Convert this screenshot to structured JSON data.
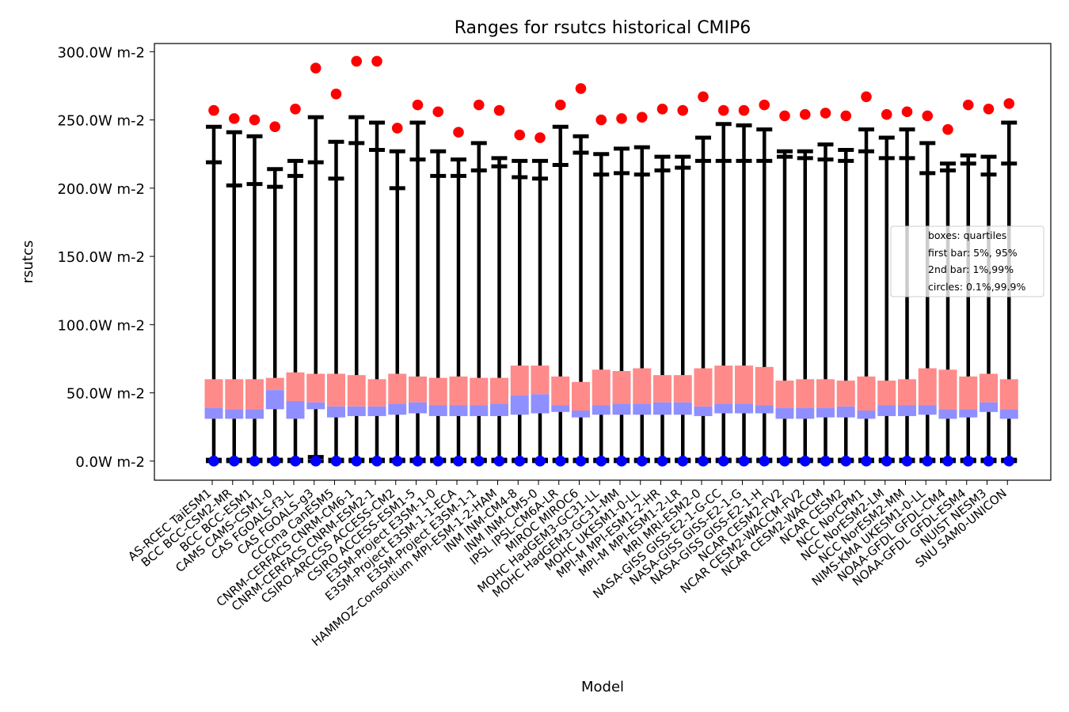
{
  "chart_data": {
    "type": "box",
    "title": "Ranges for rsutcs historical CMIP6",
    "xlabel": "Model",
    "ylabel": "rsutcs",
    "ylim": [
      -14,
      306
    ],
    "y_ticks": [
      0,
      50,
      100,
      150,
      200,
      250,
      300
    ],
    "y_tick_labels": [
      "0.0W m-2",
      "50.0W m-2",
      "100.0W m-2",
      "150.0W m-2",
      "200.0W m-2",
      "250.0W m-2",
      "300.0W m-2"
    ],
    "legend": {
      "placement": "center-right",
      "entries": [
        "boxes: quartiles",
        "first bar: 5%, 95%",
        "2nd bar: 1%,99%",
        "circles: 0.1%,99.9%"
      ]
    },
    "colors": {
      "upper_box": "#ff8a8a",
      "lower_box": "#8f8fff",
      "whisker": "#000000",
      "high_circle": "#ff0000",
      "low_circle": "#0000ff"
    },
    "models": [
      {
        "name": "AS-RCEC TaiESM1",
        "q1": 31,
        "median": 39,
        "q3": 60,
        "p1": 0,
        "p5": 1,
        "p95": 219,
        "p99": 245,
        "p001": 0,
        "p999": 257
      },
      {
        "name": "BCC BCC-CSM2-MR",
        "q1": 31,
        "median": 38,
        "q3": 60,
        "p1": 0,
        "p5": 1,
        "p95": 202,
        "p99": 241,
        "p001": 0,
        "p999": 251
      },
      {
        "name": "BCC BCC-ESM1",
        "q1": 31,
        "median": 38,
        "q3": 60,
        "p1": 0,
        "p5": 1,
        "p95": 203,
        "p99": 238,
        "p001": 0,
        "p999": 250
      },
      {
        "name": "CAMS CAMS-CSM1-0",
        "q1": 38,
        "median": 52,
        "q3": 61,
        "p1": 0,
        "p5": 1,
        "p95": 201,
        "p99": 214,
        "p001": 0,
        "p999": 245
      },
      {
        "name": "CAS FGOALS-f3-L",
        "q1": 31,
        "median": 44,
        "q3": 65,
        "p1": 0,
        "p5": 1,
        "p95": 209,
        "p99": 220,
        "p001": 0,
        "p999": 258
      },
      {
        "name": "CAS FGOALS-g3",
        "q1": 38,
        "median": 43,
        "q3": 64,
        "p1": 0,
        "p5": 3,
        "p95": 219,
        "p99": 252,
        "p001": 0,
        "p999": 288
      },
      {
        "name": "CCCma CanESM5",
        "q1": 32,
        "median": 40,
        "q3": 64,
        "p1": 0,
        "p5": 1,
        "p95": 207,
        "p99": 234,
        "p001": 0,
        "p999": 269
      },
      {
        "name": "CNRM-CERFACS CNRM-CM6-1",
        "q1": 33,
        "median": 40,
        "q3": 63,
        "p1": 0,
        "p5": 1,
        "p95": 233,
        "p99": 252,
        "p001": 0,
        "p999": 293
      },
      {
        "name": "CNRM-CERFACS CNRM-ESM2-1",
        "q1": 33,
        "median": 40,
        "q3": 60,
        "p1": 0,
        "p5": 1,
        "p95": 228,
        "p99": 248,
        "p001": 0,
        "p999": 293
      },
      {
        "name": "CSIRO-ARCCSS ACCESS-CM2",
        "q1": 34,
        "median": 42,
        "q3": 64,
        "p1": 0,
        "p5": 1,
        "p95": 200,
        "p99": 227,
        "p001": 0,
        "p999": 244
      },
      {
        "name": "CSIRO ACCESS-ESM1-5",
        "q1": 35,
        "median": 43,
        "q3": 62,
        "p1": 0,
        "p5": 1,
        "p95": 221,
        "p99": 248,
        "p001": 0,
        "p999": 261
      },
      {
        "name": "E3SM-Project E3SM-1-0",
        "q1": 33,
        "median": 41,
        "q3": 61,
        "p1": 0,
        "p5": 1,
        "p95": 209,
        "p99": 227,
        "p001": 0,
        "p999": 256
      },
      {
        "name": "E3SM-Project E3SM-1-1-ECA",
        "q1": 33,
        "median": 41,
        "q3": 62,
        "p1": 0,
        "p5": 1,
        "p95": 209,
        "p99": 221,
        "p001": 0,
        "p999": 241
      },
      {
        "name": "E3SM-Project E3SM-1-1",
        "q1": 33,
        "median": 41,
        "q3": 61,
        "p1": 0,
        "p5": 1,
        "p95": 213,
        "p99": 233,
        "p001": 0,
        "p999": 261
      },
      {
        "name": "HAMMOZ-Consortium MPI-ESM-1-2-HAM",
        "q1": 33,
        "median": 42,
        "q3": 61,
        "p1": 0,
        "p5": 1,
        "p95": 216,
        "p99": 222,
        "p001": 0,
        "p999": 257
      },
      {
        "name": "INM INM-CM4-8",
        "q1": 34,
        "median": 48,
        "q3": 70,
        "p1": 0,
        "p5": 1,
        "p95": 208,
        "p99": 220,
        "p001": 0,
        "p999": 239
      },
      {
        "name": "INM INM-CM5-0",
        "q1": 35,
        "median": 49,
        "q3": 70,
        "p1": 0,
        "p5": 1,
        "p95": 207,
        "p99": 220,
        "p001": 0,
        "p999": 237
      },
      {
        "name": "IPSL IPSL-CM6A-LR",
        "q1": 36,
        "median": 41,
        "q3": 62,
        "p1": 0,
        "p5": 1,
        "p95": 217,
        "p99": 245,
        "p001": 0,
        "p999": 261
      },
      {
        "name": "MIROC MIROC6",
        "q1": 32,
        "median": 37,
        "q3": 58,
        "p1": 0,
        "p5": 1,
        "p95": 226,
        "p99": 238,
        "p001": 0,
        "p999": 273
      },
      {
        "name": "MOHC HadGEM3-GC31-LL",
        "q1": 34,
        "median": 41,
        "q3": 67,
        "p1": 0,
        "p5": 1,
        "p95": 210,
        "p99": 225,
        "p001": 0,
        "p999": 250
      },
      {
        "name": "MOHC HadGEM3-GC31-MM",
        "q1": 34,
        "median": 42,
        "q3": 66,
        "p1": 0,
        "p5": 1,
        "p95": 211,
        "p99": 229,
        "p001": 0,
        "p999": 251
      },
      {
        "name": "MOHC UKESM1-0-LL",
        "q1": 34,
        "median": 42,
        "q3": 68,
        "p1": 0,
        "p5": 1,
        "p95": 210,
        "p99": 230,
        "p001": 0,
        "p999": 252
      },
      {
        "name": "MPI-M MPI-ESM1-2-HR",
        "q1": 34,
        "median": 43,
        "q3": 63,
        "p1": 0,
        "p5": 1,
        "p95": 213,
        "p99": 223,
        "p001": 0,
        "p999": 258
      },
      {
        "name": "MPI-M MPI-ESM1-2-LR",
        "q1": 34,
        "median": 43,
        "q3": 63,
        "p1": 0,
        "p5": 1,
        "p95": 215,
        "p99": 223,
        "p001": 0,
        "p999": 257
      },
      {
        "name": "MRI MRI-ESM2-0",
        "q1": 33,
        "median": 40,
        "q3": 68,
        "p1": 0,
        "p5": 1,
        "p95": 220,
        "p99": 237,
        "p001": 0,
        "p999": 267
      },
      {
        "name": "NASA-GISS GISS-E2-1-G-CC",
        "q1": 35,
        "median": 42,
        "q3": 70,
        "p1": 0,
        "p5": 1,
        "p95": 220,
        "p99": 247,
        "p001": 0,
        "p999": 257
      },
      {
        "name": "NASA-GISS GISS-E2-1-G",
        "q1": 35,
        "median": 42,
        "q3": 70,
        "p1": 0,
        "p5": 1,
        "p95": 220,
        "p99": 246,
        "p001": 0,
        "p999": 257
      },
      {
        "name": "NASA-GISS GISS-E2-1-H",
        "q1": 35,
        "median": 41,
        "q3": 69,
        "p1": 0,
        "p5": 1,
        "p95": 220,
        "p99": 243,
        "p001": 0,
        "p999": 261
      },
      {
        "name": "NCAR CESM2-FV2",
        "q1": 31,
        "median": 39,
        "q3": 59,
        "p1": 0,
        "p5": 1,
        "p95": 223,
        "p99": 227,
        "p001": 0,
        "p999": 253
      },
      {
        "name": "NCAR CESM2-WACCM-FV2",
        "q1": 31,
        "median": 39,
        "q3": 60,
        "p1": 0,
        "p5": 1,
        "p95": 222,
        "p99": 227,
        "p001": 0,
        "p999": 254
      },
      {
        "name": "NCAR CESM2-WACCM",
        "q1": 32,
        "median": 39,
        "q3": 60,
        "p1": 0,
        "p5": 1,
        "p95": 221,
        "p99": 232,
        "p001": 0,
        "p999": 255
      },
      {
        "name": "NCAR CESM2",
        "q1": 32,
        "median": 40,
        "q3": 59,
        "p1": 0,
        "p5": 1,
        "p95": 220,
        "p99": 228,
        "p001": 0,
        "p999": 253
      },
      {
        "name": "NCC NorCPM1",
        "q1": 31,
        "median": 37,
        "q3": 62,
        "p1": 0,
        "p5": 1,
        "p95": 227,
        "p99": 243,
        "p001": 0,
        "p999": 267
      },
      {
        "name": "NCC NorESM2-LM",
        "q1": 33,
        "median": 41,
        "q3": 59,
        "p1": 0,
        "p5": 1,
        "p95": 222,
        "p99": 237,
        "p001": 0,
        "p999": 254
      },
      {
        "name": "NCC NorESM2-MM",
        "q1": 33,
        "median": 41,
        "q3": 60,
        "p1": 0,
        "p5": 1,
        "p95": 222,
        "p99": 243,
        "p001": 0,
        "p999": 256
      },
      {
        "name": "NIMS-KMA UKESM1-0-LL",
        "q1": 34,
        "median": 41,
        "q3": 68,
        "p1": 0,
        "p5": 1,
        "p95": 211,
        "p99": 233,
        "p001": 0,
        "p999": 253
      },
      {
        "name": "NOAA-GFDL GFDL-CM4",
        "q1": 31,
        "median": 38,
        "q3": 67,
        "p1": 0,
        "p5": 1,
        "p95": 213,
        "p99": 218,
        "p001": 0,
        "p999": 243
      },
      {
        "name": "NOAA-GFDL GFDL-ESM4",
        "q1": 32,
        "median": 38,
        "q3": 62,
        "p1": 0,
        "p5": 1,
        "p95": 218,
        "p99": 224,
        "p001": 0,
        "p999": 261
      },
      {
        "name": "NUIST NESM3",
        "q1": 36,
        "median": 43,
        "q3": 64,
        "p1": 0,
        "p5": 1,
        "p95": 210,
        "p99": 223,
        "p001": 0,
        "p999": 258
      },
      {
        "name": "SNU SAM0-UNICON",
        "q1": 31,
        "median": 38,
        "q3": 60,
        "p1": 0,
        "p5": 1,
        "p95": 218,
        "p99": 248,
        "p001": 0,
        "p999": 262
      }
    ]
  }
}
